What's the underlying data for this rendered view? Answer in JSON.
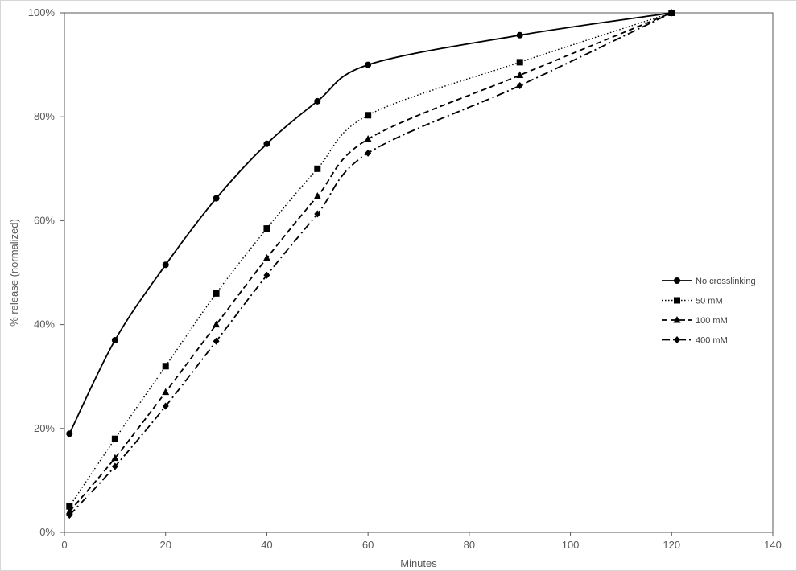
{
  "chart_data": {
    "type": "line",
    "xlabel": "Minutes",
    "ylabel": "% release (normalized)",
    "xlim": [
      0,
      140
    ],
    "ylim": [
      0,
      1
    ],
    "x_ticks": [
      0,
      20,
      40,
      60,
      80,
      100,
      120,
      140
    ],
    "x_tick_labels": [
      "0",
      "20",
      "40",
      "60",
      "80",
      "100",
      "120",
      "140"
    ],
    "y_ticks": [
      0,
      0.2,
      0.4,
      0.6,
      0.8,
      1.0
    ],
    "y_tick_labels": [
      "0%",
      "20%",
      "40%",
      "60%",
      "80%",
      "100%"
    ],
    "grid": false,
    "legend_position": "right",
    "x": [
      1,
      10,
      20,
      30,
      40,
      50,
      60,
      90,
      120
    ],
    "series": [
      {
        "name": "No crosslinking",
        "marker": "circle",
        "line_style": "solid",
        "color": "#000000",
        "values": [
          0.19,
          0.37,
          0.515,
          0.643,
          0.748,
          0.83,
          0.9,
          0.957,
          1.0
        ]
      },
      {
        "name": "50 mM",
        "marker": "square",
        "line_style": "dotted",
        "color": "#000000",
        "values": [
          0.05,
          0.18,
          0.32,
          0.46,
          0.585,
          0.7,
          0.803,
          0.905,
          1.0
        ]
      },
      {
        "name": "100 mM",
        "marker": "triangle",
        "line_style": "dashed",
        "color": "#000000",
        "values": [
          0.04,
          0.143,
          0.27,
          0.4,
          0.528,
          0.647,
          0.757,
          0.88,
          1.0
        ]
      },
      {
        "name": "400 mM",
        "marker": "diamond",
        "line_style": "dash-dot",
        "color": "#000000",
        "values": [
          0.033,
          0.127,
          0.243,
          0.368,
          0.495,
          0.613,
          0.73,
          0.86,
          1.0
        ]
      }
    ]
  }
}
